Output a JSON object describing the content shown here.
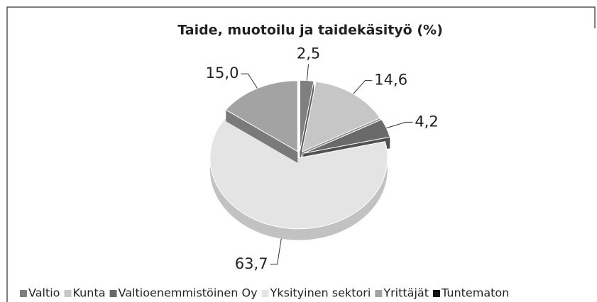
{
  "chart_data": {
    "type": "pie",
    "title": "Taide, muotoilu ja taidekäsityö (%)",
    "categories": [
      "Valtio",
      "Kunta",
      "Valtioenemmistöinen Oy",
      "Yksityinen sektori",
      "Yrittäjät",
      "Tuntematon"
    ],
    "values": [
      2.5,
      14.6,
      4.2,
      63.7,
      15.0,
      0
    ],
    "value_labels": [
      "2,5",
      "14,6",
      "4,2",
      "63,7",
      "15,0",
      null
    ],
    "colors": [
      "#7f7f7f",
      "#c6c6c6",
      "#6a6a6a",
      "#e4e4e4",
      "#a3a3a3",
      "#111111"
    ],
    "legend": "bottom"
  }
}
